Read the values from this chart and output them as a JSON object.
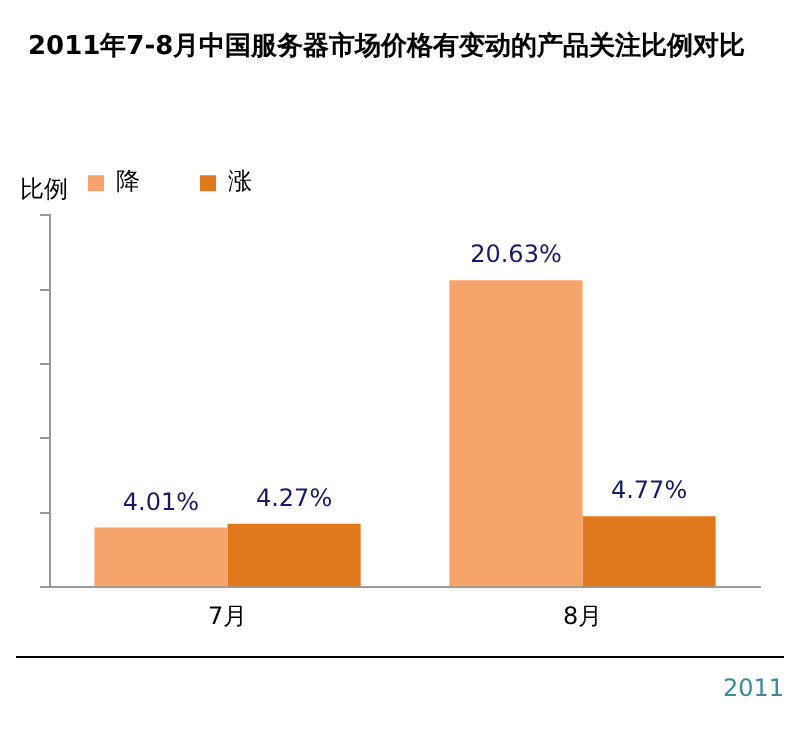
{
  "chart_data": {
    "type": "bar",
    "title": "2011年7-8月中国服务器市场价格有变动的产品关注比例对比",
    "ylabel": "比例",
    "categories": [
      "7月",
      "8月"
    ],
    "series": [
      {
        "name": "降",
        "color": "#f6a46c",
        "values": [
          4.01,
          20.63
        ],
        "value_labels": [
          "4.01%",
          "20.63%"
        ]
      },
      {
        "name": "涨",
        "color": "#e0781e",
        "values": [
          4.27,
          4.77
        ],
        "value_labels": [
          "4.27%",
          "4.77%"
        ]
      }
    ],
    "tick_labels": "x",
    "legend": "top left",
    "grid": false,
    "annotations": [
      "2011"
    ]
  }
}
